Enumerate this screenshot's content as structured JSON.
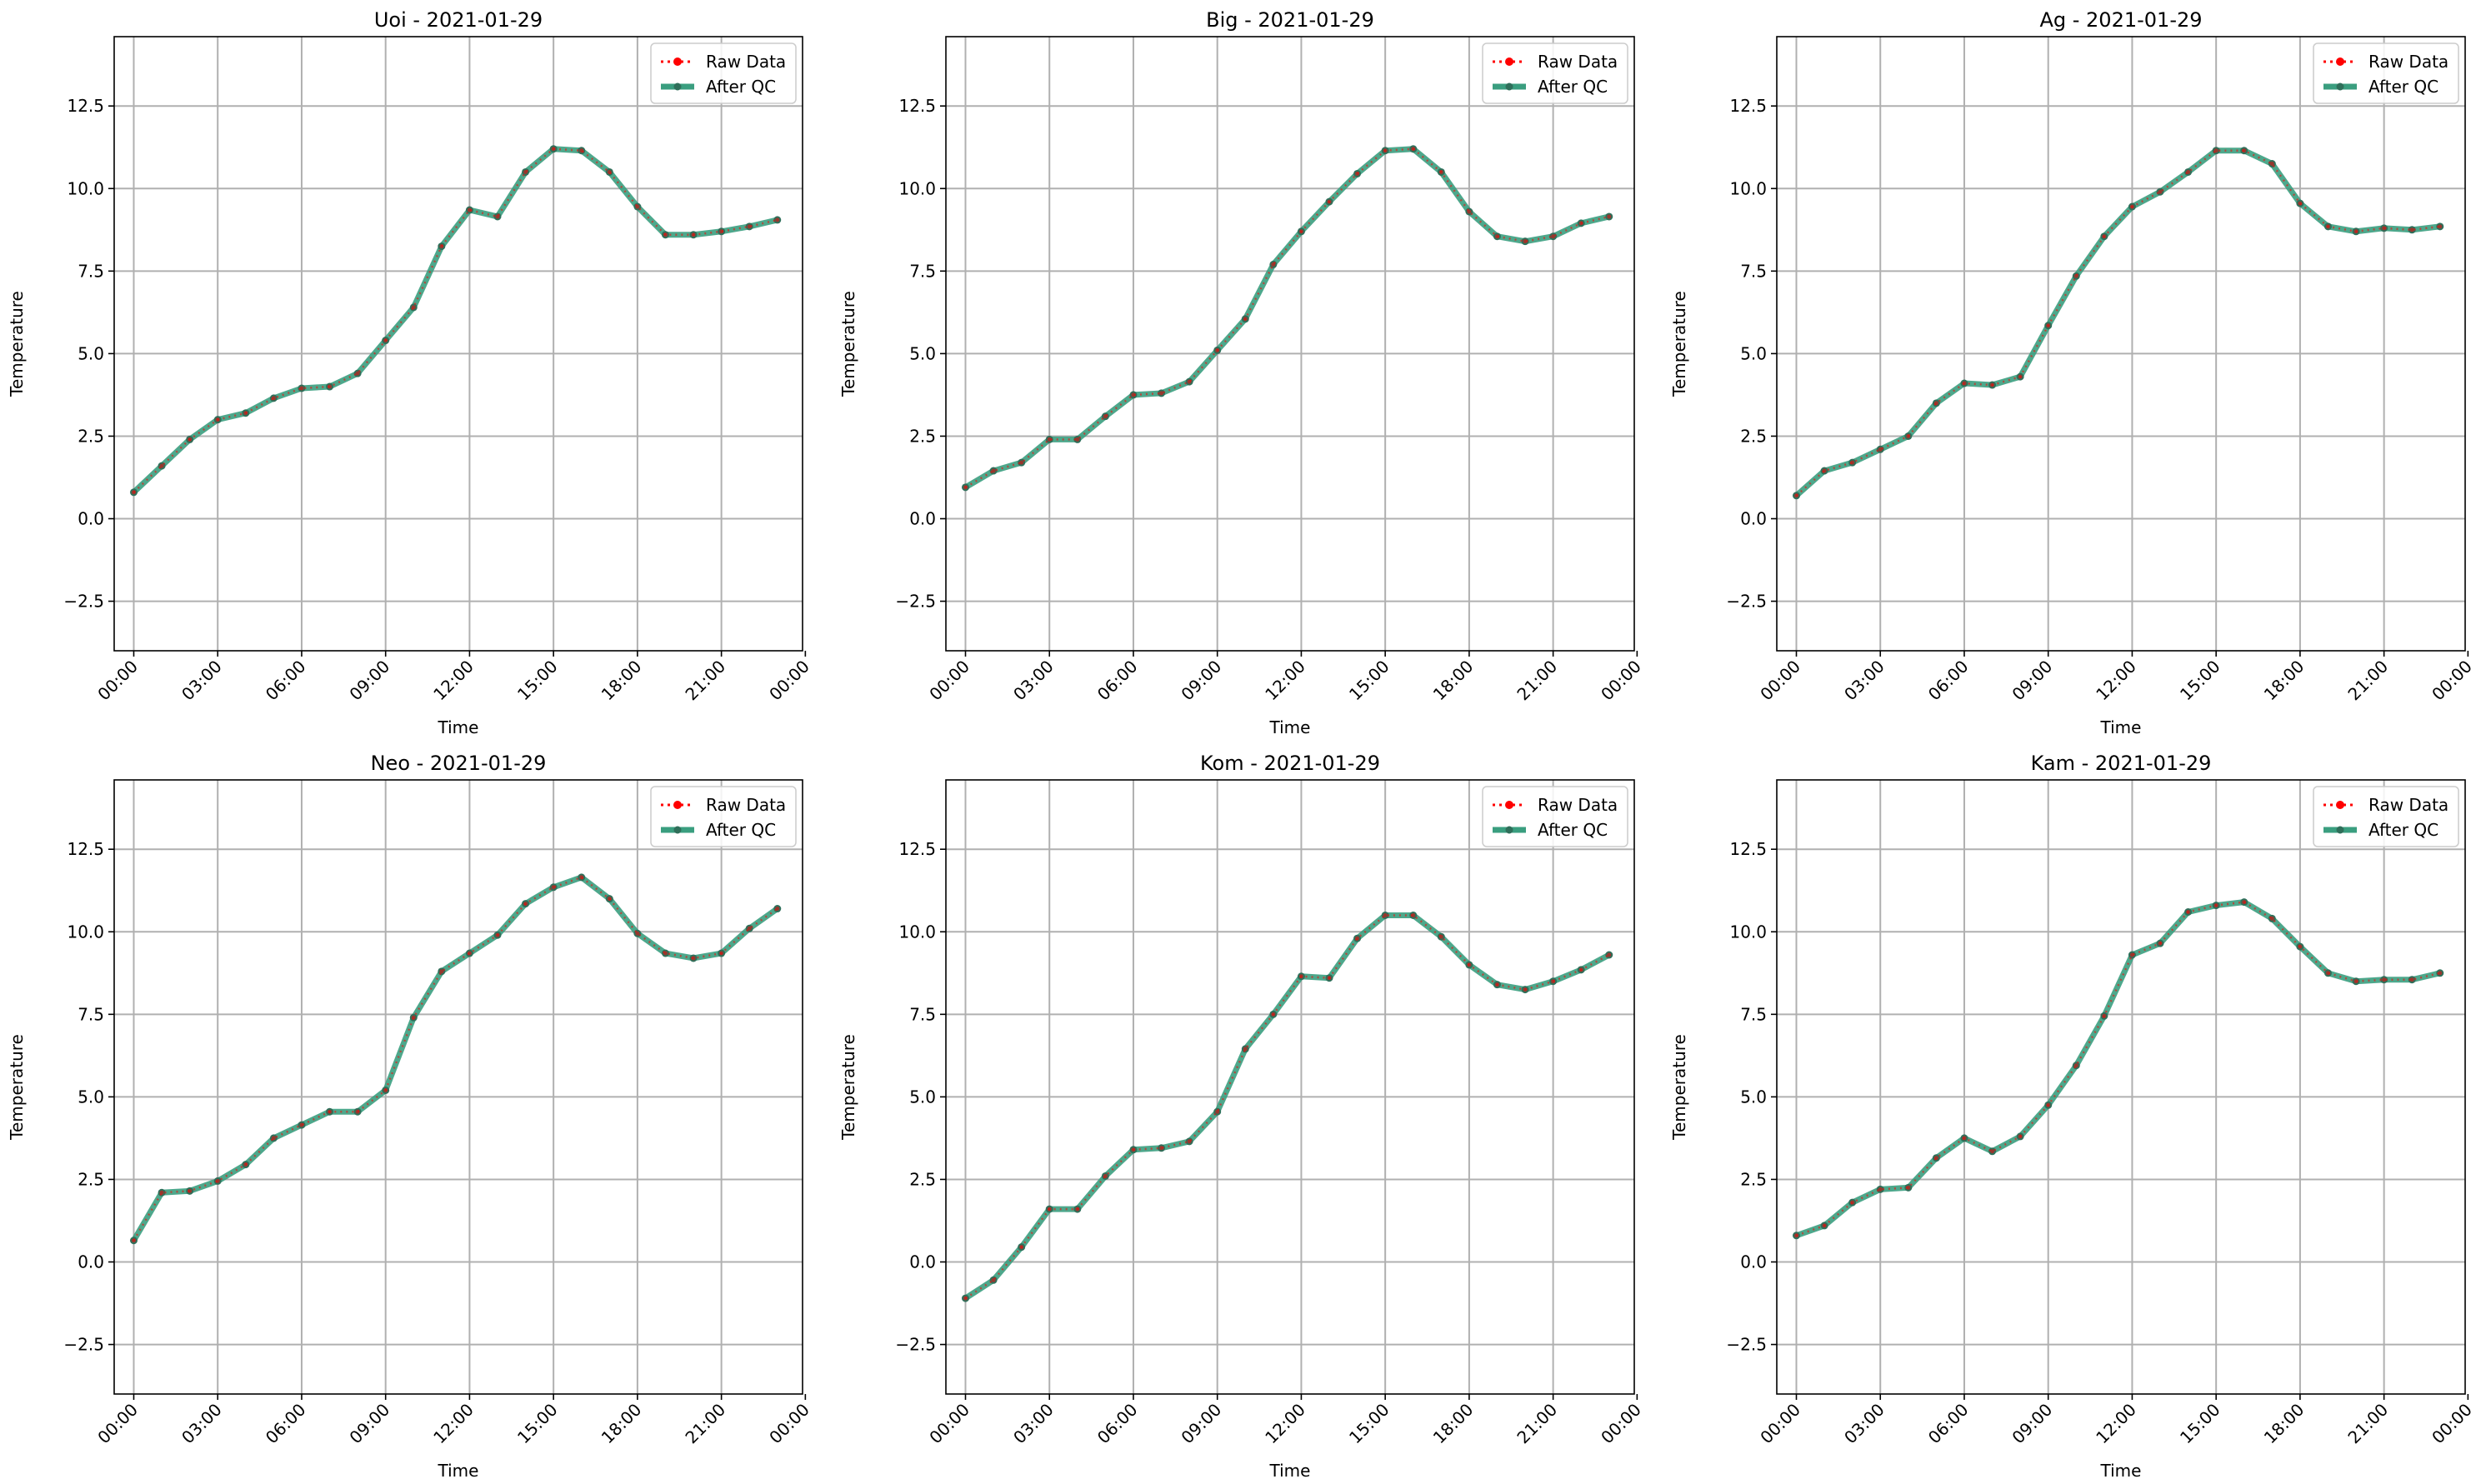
{
  "colors": {
    "raw": "#ff0000",
    "qc_line": "#3a9e7f",
    "qc_marker": "#2f6f5a",
    "grid": "#b0b0b0"
  },
  "legend": {
    "raw_label": "Raw Data",
    "qc_label": "After QC",
    "placement": "upper right"
  },
  "chart_data": [
    {
      "type": "line",
      "title": "Uoi - 2021-01-29",
      "xlabel": "Time",
      "ylabel": "Temperature",
      "xlim": [
        -0.7,
        23.9
      ],
      "ylim": [
        -4.0,
        14.6
      ],
      "xticks": [
        0,
        3,
        6,
        9,
        12,
        15,
        18,
        21,
        24
      ],
      "xticklabels": [
        "00:00",
        "03:00",
        "06:00",
        "09:00",
        "12:00",
        "15:00",
        "18:00",
        "21:00",
        "00:00"
      ],
      "yticks": [
        -2.5,
        0.0,
        2.5,
        5.0,
        7.5,
        10.0,
        12.5
      ],
      "yticklabels": [
        "−2.5",
        "0.0",
        "2.5",
        "5.0",
        "7.5",
        "10.0",
        "12.5"
      ],
      "grid": true,
      "x": [
        0,
        1,
        2,
        3,
        4,
        5,
        6,
        7,
        8,
        9,
        10,
        11,
        12,
        13,
        14,
        15,
        16,
        17,
        18,
        19,
        20,
        21,
        22,
        23
      ],
      "series": [
        {
          "name": "Raw Data",
          "values": [
            0.8,
            1.6,
            2.4,
            3.0,
            3.2,
            3.65,
            3.95,
            4.0,
            4.4,
            5.4,
            6.4,
            8.25,
            9.35,
            9.15,
            10.5,
            11.2,
            11.15,
            10.5,
            9.45,
            8.6,
            8.6,
            8.7,
            8.85,
            9.05
          ]
        },
        {
          "name": "After QC",
          "values": [
            0.8,
            1.6,
            2.4,
            3.0,
            3.2,
            3.65,
            3.95,
            4.0,
            4.4,
            5.4,
            6.4,
            8.25,
            9.35,
            9.15,
            10.5,
            11.2,
            11.15,
            10.5,
            9.45,
            8.6,
            8.6,
            8.7,
            8.85,
            9.05
          ]
        }
      ]
    },
    {
      "type": "line",
      "title": "Big - 2021-01-29",
      "xlabel": "Time",
      "ylabel": "Temperature",
      "xlim": [
        -0.7,
        23.9
      ],
      "ylim": [
        -4.0,
        14.6
      ],
      "xticks": [
        0,
        3,
        6,
        9,
        12,
        15,
        18,
        21,
        24
      ],
      "xticklabels": [
        "00:00",
        "03:00",
        "06:00",
        "09:00",
        "12:00",
        "15:00",
        "18:00",
        "21:00",
        "00:00"
      ],
      "yticks": [
        -2.5,
        0.0,
        2.5,
        5.0,
        7.5,
        10.0,
        12.5
      ],
      "yticklabels": [
        "−2.5",
        "0.0",
        "2.5",
        "5.0",
        "7.5",
        "10.0",
        "12.5"
      ],
      "grid": true,
      "x": [
        0,
        1,
        2,
        3,
        4,
        5,
        6,
        7,
        8,
        9,
        10,
        11,
        12,
        13,
        14,
        15,
        16,
        17,
        18,
        19,
        20,
        21,
        22,
        23
      ],
      "series": [
        {
          "name": "Raw Data",
          "values": [
            0.95,
            1.45,
            1.7,
            2.4,
            2.4,
            3.1,
            3.75,
            3.8,
            4.15,
            5.1,
            6.05,
            7.7,
            8.7,
            9.6,
            10.45,
            11.15,
            11.2,
            10.5,
            9.3,
            8.55,
            8.4,
            8.55,
            8.95,
            9.15
          ]
        },
        {
          "name": "After QC",
          "values": [
            0.95,
            1.45,
            1.7,
            2.4,
            2.4,
            3.1,
            3.75,
            3.8,
            4.15,
            5.1,
            6.05,
            7.7,
            8.7,
            9.6,
            10.45,
            11.15,
            11.2,
            10.5,
            9.3,
            8.55,
            8.4,
            8.55,
            8.95,
            9.15
          ]
        }
      ]
    },
    {
      "type": "line",
      "title": "Ag - 2021-01-29",
      "xlabel": "Time",
      "ylabel": "Temperature",
      "xlim": [
        -0.7,
        23.9
      ],
      "ylim": [
        -4.0,
        14.6
      ],
      "xticks": [
        0,
        3,
        6,
        9,
        12,
        15,
        18,
        21,
        24
      ],
      "xticklabels": [
        "00:00",
        "03:00",
        "06:00",
        "09:00",
        "12:00",
        "15:00",
        "18:00",
        "21:00",
        "00:00"
      ],
      "yticks": [
        -2.5,
        0.0,
        2.5,
        5.0,
        7.5,
        10.0,
        12.5
      ],
      "yticklabels": [
        "−2.5",
        "0.0",
        "2.5",
        "5.0",
        "7.5",
        "10.0",
        "12.5"
      ],
      "grid": true,
      "x": [
        0,
        1,
        2,
        3,
        4,
        5,
        6,
        7,
        8,
        9,
        10,
        11,
        12,
        13,
        14,
        15,
        16,
        17,
        18,
        19,
        20,
        21,
        22,
        23
      ],
      "series": [
        {
          "name": "Raw Data",
          "values": [
            0.7,
            1.45,
            1.7,
            2.1,
            2.5,
            3.5,
            4.1,
            4.05,
            4.3,
            5.85,
            7.35,
            8.55,
            9.45,
            9.9,
            10.5,
            11.15,
            11.15,
            10.75,
            9.55,
            8.85,
            8.7,
            8.8,
            8.75,
            8.85
          ]
        },
        {
          "name": "After QC",
          "values": [
            0.7,
            1.45,
            1.7,
            2.1,
            2.5,
            3.5,
            4.1,
            4.05,
            4.3,
            5.85,
            7.35,
            8.55,
            9.45,
            9.9,
            10.5,
            11.15,
            11.15,
            10.75,
            9.55,
            8.85,
            8.7,
            8.8,
            8.75,
            8.85
          ]
        }
      ]
    },
    {
      "type": "line",
      "title": "Neo - 2021-01-29",
      "xlabel": "Time",
      "ylabel": "Temperature",
      "xlim": [
        -0.7,
        23.9
      ],
      "ylim": [
        -4.0,
        14.6
      ],
      "xticks": [
        0,
        3,
        6,
        9,
        12,
        15,
        18,
        21,
        24
      ],
      "xticklabels": [
        "00:00",
        "03:00",
        "06:00",
        "09:00",
        "12:00",
        "15:00",
        "18:00",
        "21:00",
        "00:00"
      ],
      "yticks": [
        -2.5,
        0.0,
        2.5,
        5.0,
        7.5,
        10.0,
        12.5
      ],
      "yticklabels": [
        "−2.5",
        "0.0",
        "2.5",
        "5.0",
        "7.5",
        "10.0",
        "12.5"
      ],
      "grid": true,
      "x": [
        0,
        1,
        2,
        3,
        4,
        5,
        6,
        7,
        8,
        9,
        10,
        11,
        12,
        13,
        14,
        15,
        16,
        17,
        18,
        19,
        20,
        21,
        22,
        23
      ],
      "series": [
        {
          "name": "Raw Data",
          "values": [
            0.65,
            2.1,
            2.15,
            2.45,
            2.95,
            3.75,
            4.15,
            4.55,
            4.55,
            5.2,
            7.4,
            8.8,
            9.35,
            9.9,
            10.85,
            11.35,
            11.65,
            11.0,
            9.95,
            9.35,
            9.2,
            9.35,
            10.1,
            10.7
          ]
        },
        {
          "name": "After QC",
          "values": [
            0.65,
            2.1,
            2.15,
            2.45,
            2.95,
            3.75,
            4.15,
            4.55,
            4.55,
            5.2,
            7.4,
            8.8,
            9.35,
            9.9,
            10.85,
            11.35,
            11.65,
            11.0,
            9.95,
            9.35,
            9.2,
            9.35,
            10.1,
            10.7
          ]
        }
      ]
    },
    {
      "type": "line",
      "title": "Kom - 2021-01-29",
      "xlabel": "Time",
      "ylabel": "Temperature",
      "xlim": [
        -0.7,
        23.9
      ],
      "ylim": [
        -4.0,
        14.6
      ],
      "xticks": [
        0,
        3,
        6,
        9,
        12,
        15,
        18,
        21,
        24
      ],
      "xticklabels": [
        "00:00",
        "03:00",
        "06:00",
        "09:00",
        "12:00",
        "15:00",
        "18:00",
        "21:00",
        "00:00"
      ],
      "yticks": [
        -2.5,
        0.0,
        2.5,
        5.0,
        7.5,
        10.0,
        12.5
      ],
      "yticklabels": [
        "−2.5",
        "0.0",
        "2.5",
        "5.0",
        "7.5",
        "10.0",
        "12.5"
      ],
      "grid": true,
      "x": [
        0,
        1,
        2,
        3,
        4,
        5,
        6,
        7,
        8,
        9,
        10,
        11,
        12,
        13,
        14,
        15,
        16,
        17,
        18,
        19,
        20,
        21,
        22,
        23
      ],
      "series": [
        {
          "name": "Raw Data",
          "values": [
            -1.1,
            -0.55,
            0.45,
            1.6,
            1.6,
            2.6,
            3.4,
            3.45,
            3.65,
            4.55,
            6.45,
            7.5,
            8.65,
            8.6,
            9.8,
            10.5,
            10.5,
            9.85,
            9.0,
            8.4,
            8.25,
            8.5,
            8.85,
            9.3
          ]
        },
        {
          "name": "After QC",
          "values": [
            -1.1,
            -0.55,
            0.45,
            1.6,
            1.6,
            2.6,
            3.4,
            3.45,
            3.65,
            4.55,
            6.45,
            7.5,
            8.65,
            8.6,
            9.8,
            10.5,
            10.5,
            9.85,
            9.0,
            8.4,
            8.25,
            8.5,
            8.85,
            9.3
          ]
        }
      ]
    },
    {
      "type": "line",
      "title": "Kam - 2021-01-29",
      "xlabel": "Time",
      "ylabel": "Temperature",
      "xlim": [
        -0.7,
        23.9
      ],
      "ylim": [
        -4.0,
        14.6
      ],
      "xticks": [
        0,
        3,
        6,
        9,
        12,
        15,
        18,
        21,
        24
      ],
      "xticklabels": [
        "00:00",
        "03:00",
        "06:00",
        "09:00",
        "12:00",
        "15:00",
        "18:00",
        "21:00",
        "00:00"
      ],
      "yticks": [
        -2.5,
        0.0,
        2.5,
        5.0,
        7.5,
        10.0,
        12.5
      ],
      "yticklabels": [
        "−2.5",
        "0.0",
        "2.5",
        "5.0",
        "7.5",
        "10.0",
        "12.5"
      ],
      "grid": true,
      "x": [
        0,
        1,
        2,
        3,
        4,
        5,
        6,
        7,
        8,
        9,
        10,
        11,
        12,
        13,
        14,
        15,
        16,
        17,
        18,
        19,
        20,
        21,
        22,
        23
      ],
      "series": [
        {
          "name": "Raw Data",
          "values": [
            0.8,
            1.1,
            1.8,
            2.2,
            2.25,
            3.15,
            3.75,
            3.35,
            3.8,
            4.75,
            5.95,
            7.45,
            9.3,
            9.65,
            10.6,
            10.8,
            10.9,
            10.4,
            9.55,
            8.75,
            8.5,
            8.55,
            8.55,
            8.75
          ]
        },
        {
          "name": "After QC",
          "values": [
            0.8,
            1.1,
            1.8,
            2.2,
            2.25,
            3.15,
            3.75,
            3.35,
            3.8,
            4.75,
            5.95,
            7.45,
            9.3,
            9.65,
            10.6,
            10.8,
            10.9,
            10.4,
            9.55,
            8.75,
            8.5,
            8.55,
            8.55,
            8.75
          ]
        }
      ]
    }
  ]
}
